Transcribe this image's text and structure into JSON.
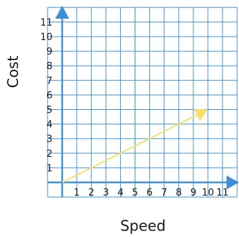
{
  "chart_data": {
    "type": "line",
    "title": "",
    "xlabel": "Speed",
    "ylabel": "Cost",
    "xlim": [
      -1,
      12
    ],
    "ylim": [
      -1,
      12
    ],
    "x_ticks": [
      1,
      2,
      3,
      4,
      5,
      6,
      7,
      8,
      9,
      10,
      11
    ],
    "y_ticks": [
      1,
      2,
      3,
      4,
      5,
      6,
      7,
      8,
      9,
      10,
      11
    ],
    "grid": true,
    "arrow": {
      "from": [
        0,
        0
      ],
      "to": [
        10,
        5
      ]
    },
    "colors": {
      "grid": "#3d8fd6",
      "axis": "#3d8fd6",
      "arrow": "#f5e26a",
      "text": "#1a1a1a"
    }
  }
}
